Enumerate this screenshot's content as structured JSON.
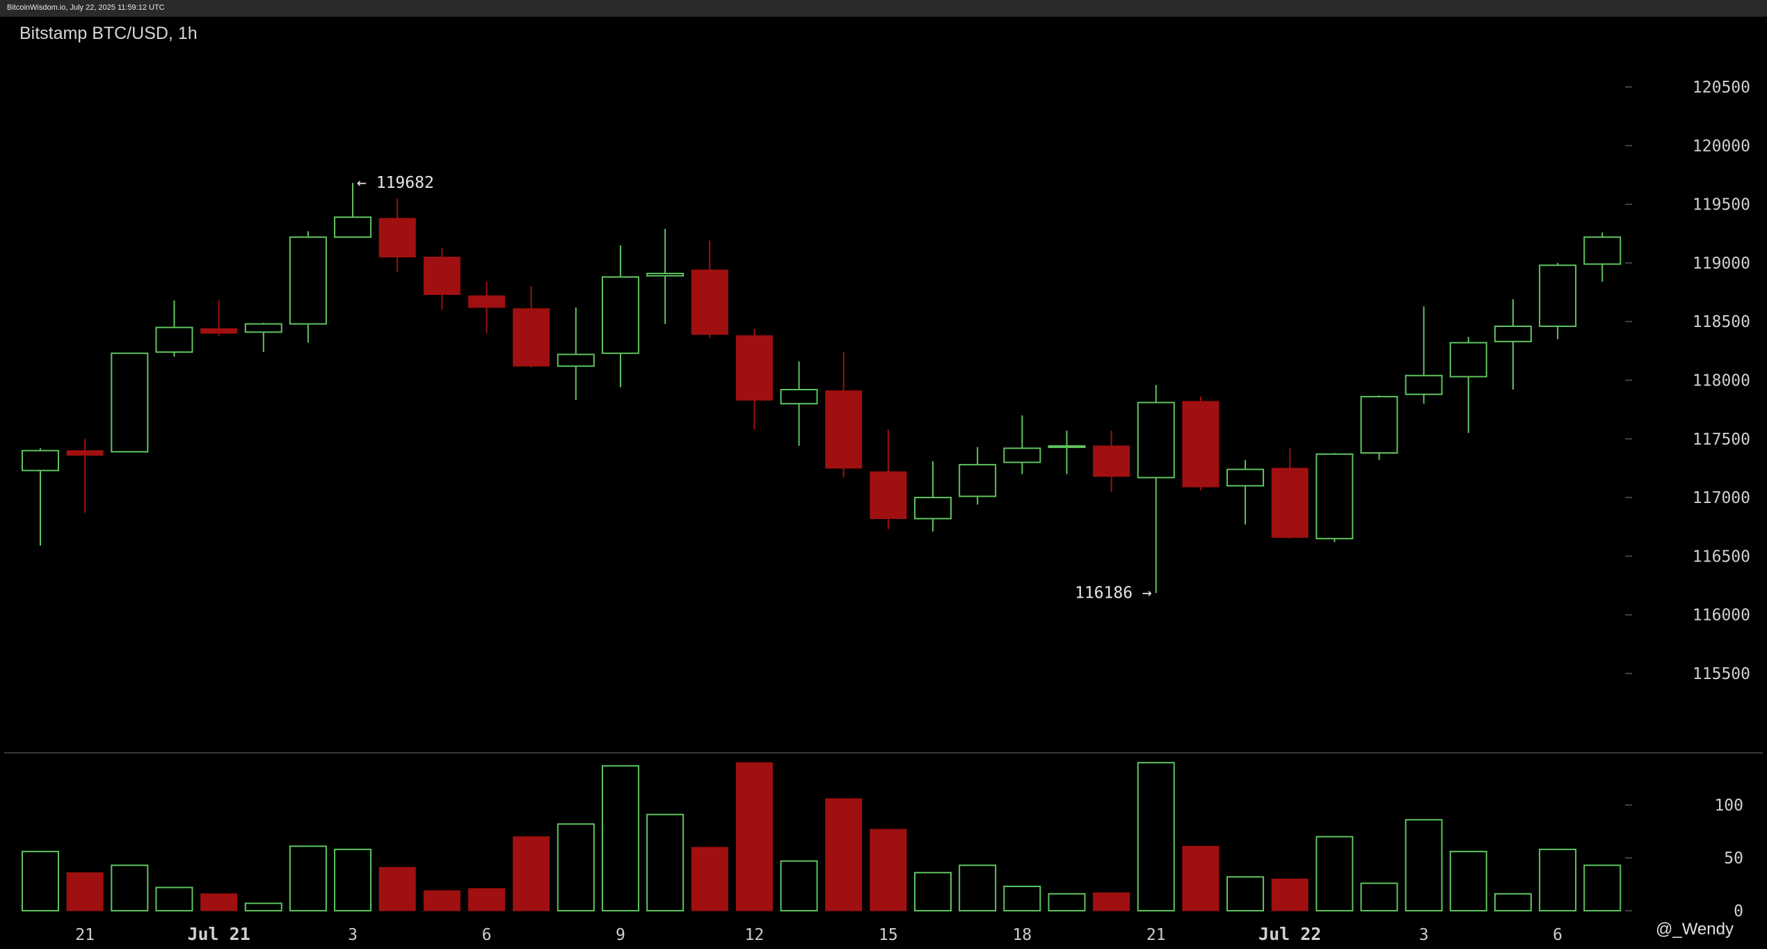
{
  "header": {
    "source_line": "BitcoinWisdom.io, July 22, 2025 11:59:12 UTC"
  },
  "chart_title": "Bitstamp BTC/USD, 1h",
  "watermark": "@_Wendy",
  "colors": {
    "up": "#5ec45e",
    "down": "#a01010",
    "background": "#000000",
    "text": "#cfcfcf"
  },
  "chart_data": {
    "type": "candlestick",
    "interval": "1h",
    "price_axis": {
      "ticks": [
        115500,
        116000,
        116500,
        117000,
        117500,
        118000,
        118500,
        119000,
        119500,
        120000,
        120500
      ]
    },
    "volume_axis": {
      "ticks": [
        0,
        50,
        100
      ]
    },
    "time_labels": [
      {
        "index": 1,
        "label": "21",
        "bold": false
      },
      {
        "index": 4,
        "label": "Jul 21",
        "bold": true
      },
      {
        "index": 7,
        "label": "3",
        "bold": false
      },
      {
        "index": 10,
        "label": "6",
        "bold": false
      },
      {
        "index": 13,
        "label": "9",
        "bold": false
      },
      {
        "index": 16,
        "label": "12",
        "bold": false
      },
      {
        "index": 19,
        "label": "15",
        "bold": false
      },
      {
        "index": 22,
        "label": "18",
        "bold": false
      },
      {
        "index": 25,
        "label": "21",
        "bold": false
      },
      {
        "index": 28,
        "label": "Jul 22",
        "bold": true
      },
      {
        "index": 31,
        "label": "3",
        "bold": false
      },
      {
        "index": 34,
        "label": "6",
        "bold": false
      }
    ],
    "annotations": [
      {
        "index": 7,
        "price": 119682,
        "text": "← 119682",
        "side": "right"
      },
      {
        "index": 25,
        "price": 116186,
        "text": "116186 →",
        "side": "left"
      }
    ],
    "candles": [
      {
        "open": 117230,
        "high": 117420,
        "low": 116590,
        "close": 117400,
        "volume": 56
      },
      {
        "open": 117400,
        "high": 117500,
        "low": 116870,
        "close": 117360,
        "volume": 36
      },
      {
        "open": 117390,
        "high": 118230,
        "low": 117390,
        "close": 118230,
        "volume": 43
      },
      {
        "open": 118240,
        "high": 118680,
        "low": 118200,
        "close": 118450,
        "volume": 22
      },
      {
        "open": 118440,
        "high": 118680,
        "low": 118380,
        "close": 118400,
        "volume": 16
      },
      {
        "open": 118410,
        "high": 118490,
        "low": 118240,
        "close": 118480,
        "volume": 7
      },
      {
        "open": 118480,
        "high": 119270,
        "low": 118320,
        "close": 119220,
        "volume": 61
      },
      {
        "open": 119220,
        "high": 119682,
        "low": 119220,
        "close": 119390,
        "volume": 58
      },
      {
        "open": 119380,
        "high": 119550,
        "low": 118920,
        "close": 119050,
        "volume": 41
      },
      {
        "open": 119050,
        "high": 119130,
        "low": 118600,
        "close": 118730,
        "volume": 19
      },
      {
        "open": 118720,
        "high": 118840,
        "low": 118400,
        "close": 118620,
        "volume": 21
      },
      {
        "open": 118610,
        "high": 118800,
        "low": 118110,
        "close": 118120,
        "volume": 70
      },
      {
        "open": 118120,
        "high": 118620,
        "low": 117830,
        "close": 118220,
        "volume": 82
      },
      {
        "open": 118230,
        "high": 119150,
        "low": 117940,
        "close": 118880,
        "volume": 137
      },
      {
        "open": 118890,
        "high": 119290,
        "low": 118480,
        "close": 118910,
        "volume": 91
      },
      {
        "open": 118940,
        "high": 119190,
        "low": 118360,
        "close": 118390,
        "volume": 60
      },
      {
        "open": 118380,
        "high": 118440,
        "low": 117580,
        "close": 117830,
        "volume": 140
      },
      {
        "open": 117800,
        "high": 118160,
        "low": 117440,
        "close": 117920,
        "volume": 47
      },
      {
        "open": 117910,
        "high": 118240,
        "low": 117170,
        "close": 117250,
        "volume": 106
      },
      {
        "open": 117220,
        "high": 117580,
        "low": 116730,
        "close": 116820,
        "volume": 77
      },
      {
        "open": 116820,
        "high": 117310,
        "low": 116710,
        "close": 117000,
        "volume": 36
      },
      {
        "open": 117010,
        "high": 117430,
        "low": 116940,
        "close": 117280,
        "volume": 43
      },
      {
        "open": 117300,
        "high": 117700,
        "low": 117200,
        "close": 117420,
        "volume": 23
      },
      {
        "open": 117430,
        "high": 117570,
        "low": 117200,
        "close": 117440,
        "volume": 16
      },
      {
        "open": 117440,
        "high": 117570,
        "low": 117050,
        "close": 117180,
        "volume": 17
      },
      {
        "open": 117170,
        "high": 117960,
        "low": 116186,
        "close": 117810,
        "volume": 140
      },
      {
        "open": 117820,
        "high": 117860,
        "low": 117060,
        "close": 117090,
        "volume": 61
      },
      {
        "open": 117100,
        "high": 117320,
        "low": 116770,
        "close": 117240,
        "volume": 32
      },
      {
        "open": 117250,
        "high": 117420,
        "low": 116650,
        "close": 116660,
        "volume": 30
      },
      {
        "open": 116650,
        "high": 117380,
        "low": 116620,
        "close": 117370,
        "volume": 70
      },
      {
        "open": 117380,
        "high": 117870,
        "low": 117320,
        "close": 117860,
        "volume": 26
      },
      {
        "open": 117880,
        "high": 118630,
        "low": 117800,
        "close": 118040,
        "volume": 86
      },
      {
        "open": 118030,
        "high": 118370,
        "low": 117550,
        "close": 118320,
        "volume": 56
      },
      {
        "open": 118330,
        "high": 118690,
        "low": 117920,
        "close": 118460,
        "volume": 16
      },
      {
        "open": 118460,
        "high": 119000,
        "low": 118350,
        "close": 118980,
        "volume": 58
      },
      {
        "open": 118990,
        "high": 119260,
        "low": 118840,
        "close": 119220,
        "volume": 43
      }
    ]
  }
}
